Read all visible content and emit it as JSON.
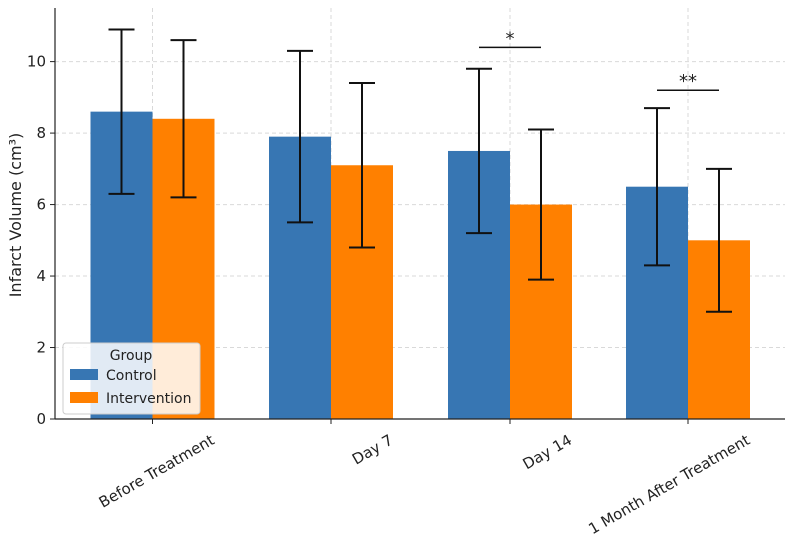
{
  "chart_data": {
    "type": "bar",
    "title": "",
    "xlabel": "",
    "ylabel": "Infarct Volume (cm³)",
    "ylim": [
      0,
      11.5
    ],
    "yticks": [
      0,
      2,
      4,
      6,
      8,
      10
    ],
    "categories": [
      "Before Treatment",
      "Day 7",
      "Day 14",
      "1 Month After Treatment"
    ],
    "series": [
      {
        "name": "Control",
        "color": "#3776b3",
        "values": [
          8.6,
          7.9,
          7.5,
          6.5
        ],
        "errors": [
          2.3,
          2.4,
          2.3,
          2.2
        ]
      },
      {
        "name": "Intervention",
        "color": "#ff8000",
        "values": [
          8.4,
          7.1,
          6.0,
          5.0
        ],
        "errors": [
          2.2,
          2.3,
          2.1,
          2.0
        ]
      }
    ],
    "legend": {
      "title": "Group",
      "position": "lower-left"
    },
    "grid": true,
    "annotations": [
      {
        "category": "Day 14",
        "text": "*",
        "y": 10.4
      },
      {
        "category": "1 Month After Treatment",
        "text": "**",
        "y": 9.2
      }
    ]
  }
}
